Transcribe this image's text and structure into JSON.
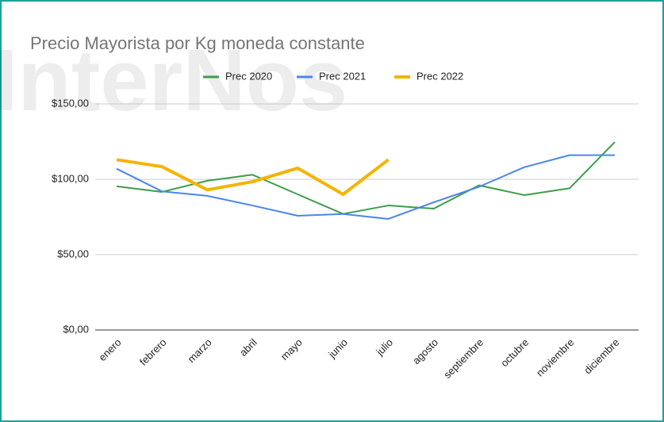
{
  "chart_data": {
    "type": "line",
    "title": "Precio Mayorista por Kg moneda constante",
    "watermark": "InterNos",
    "categories": [
      "enero",
      "febrero",
      "marzo",
      "abril",
      "mayo",
      "junio",
      "julio",
      "agosto",
      "septiembre",
      "octubre",
      "noviembre",
      "diciembre"
    ],
    "series": [
      {
        "name": "Prec 2020",
        "color": "#3e9d4c",
        "values": [
          95.3,
          91.6,
          99,
          103,
          90,
          77,
          82.6,
          80.5,
          96,
          89.5,
          94,
          124.7
        ]
      },
      {
        "name": "Prec 2021",
        "color": "#4a86e8",
        "values": [
          107,
          92,
          89,
          82.6,
          75.8,
          77,
          73.7,
          84.7,
          95,
          108,
          116,
          116
        ]
      },
      {
        "name": "Prec 2022",
        "color": "#f4b400",
        "values": [
          113,
          108.4,
          93,
          98.4,
          107.4,
          90,
          113,
          null,
          null,
          null,
          null,
          null
        ]
      }
    ],
    "ylim": [
      0,
      150
    ],
    "yticks": [
      {
        "value": 0,
        "label": "$0,00"
      },
      {
        "value": 50,
        "label": "$50,00"
      },
      {
        "value": 100,
        "label": "$100,00"
      },
      {
        "value": 150,
        "label": "$150,00"
      }
    ],
    "grid": true,
    "legend": "top"
  }
}
